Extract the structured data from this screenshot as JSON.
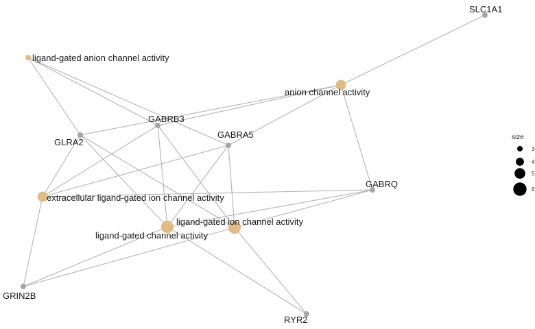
{
  "colors": {
    "gene_node": "#a6a6a6",
    "term_node": "#e0bb82",
    "edge": "#b3b3b3"
  },
  "nodes": [
    {
      "id": "SLC1A1",
      "label": "SLC1A1",
      "kind": "gene"
    },
    {
      "id": "lg_anion",
      "label": "ligand-gated anion channel activity",
      "kind": "term",
      "size": 3
    },
    {
      "id": "anion",
      "label": "anion channel activity",
      "kind": "term",
      "size": 5
    },
    {
      "id": "GABRB3",
      "label": "GABRB3",
      "kind": "gene"
    },
    {
      "id": "GLRA2",
      "label": "GLRA2",
      "kind": "gene"
    },
    {
      "id": "GABRA5",
      "label": "GABRA5",
      "kind": "gene"
    },
    {
      "id": "GABRQ",
      "label": "GABRQ",
      "kind": "gene"
    },
    {
      "id": "extracellular",
      "label": "extracellular ligand-gated ion channel activity",
      "kind": "term",
      "size": 5
    },
    {
      "id": "lg_ion",
      "label": "ligand-gated ion channel activity",
      "kind": "term",
      "size": 6
    },
    {
      "id": "lg_channel",
      "label": "ligand-gated channel activity",
      "kind": "term",
      "size": 6
    },
    {
      "id": "GRIN2B",
      "label": "GRIN2B",
      "kind": "gene"
    },
    {
      "id": "RYR2",
      "label": "RYR2",
      "kind": "gene"
    }
  ],
  "edges": [
    [
      "SLC1A1",
      "anion"
    ],
    [
      "anion",
      "GABRB3"
    ],
    [
      "anion",
      "GLRA2"
    ],
    [
      "anion",
      "GABRA5"
    ],
    [
      "anion",
      "GABRQ"
    ],
    [
      "lg_anion",
      "GLRA2"
    ],
    [
      "lg_anion",
      "GABRB3"
    ],
    [
      "lg_anion",
      "GABRA5"
    ],
    [
      "extracellular",
      "GLRA2"
    ],
    [
      "extracellular",
      "GABRB3"
    ],
    [
      "extracellular",
      "GABRA5"
    ],
    [
      "extracellular",
      "GABRQ"
    ],
    [
      "extracellular",
      "GRIN2B"
    ],
    [
      "lg_ion",
      "GLRA2"
    ],
    [
      "lg_ion",
      "GABRB3"
    ],
    [
      "lg_ion",
      "GABRA5"
    ],
    [
      "lg_ion",
      "GABRQ"
    ],
    [
      "lg_ion",
      "GRIN2B"
    ],
    [
      "lg_ion",
      "RYR2"
    ],
    [
      "lg_channel",
      "GLRA2"
    ],
    [
      "lg_channel",
      "GABRB3"
    ],
    [
      "lg_channel",
      "GABRA5"
    ],
    [
      "lg_channel",
      "GABRQ"
    ],
    [
      "lg_channel",
      "GRIN2B"
    ],
    [
      "lg_channel",
      "RYR2"
    ]
  ],
  "legend": {
    "title": "size",
    "items": [
      {
        "label": "3",
        "value": 3
      },
      {
        "label": "4",
        "value": 4
      },
      {
        "label": "5",
        "value": 5
      },
      {
        "label": "6",
        "value": 6
      }
    ]
  }
}
